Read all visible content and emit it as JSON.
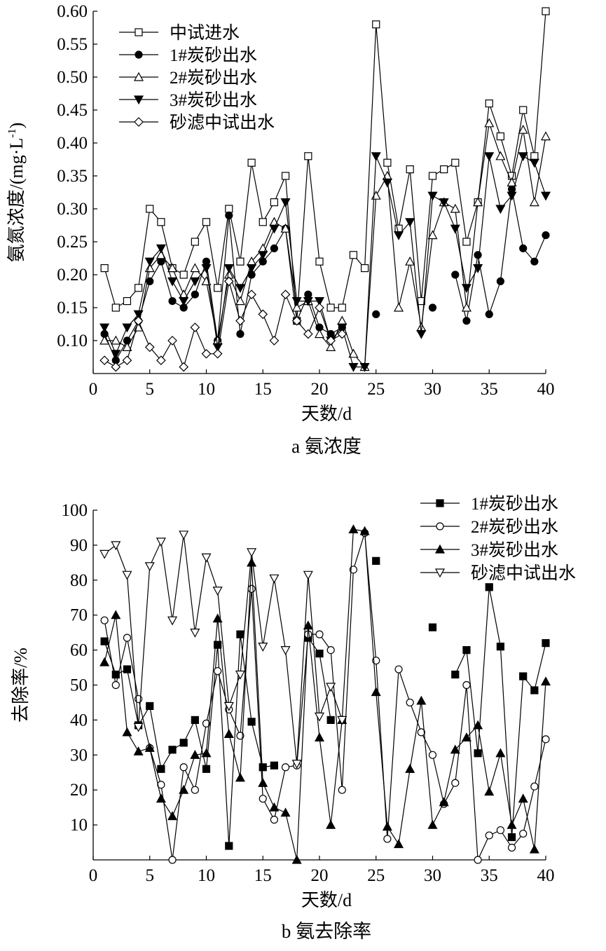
{
  "chart_data": [
    {
      "type": "line",
      "caption": "a 氨浓度",
      "xlabel": "天数/d",
      "ylabel": "氨氮浓度/(mg·L",
      "ylabel_sup": "-1",
      "ylabel_close": ")",
      "xlim": [
        0,
        40
      ],
      "ylim": [
        0.05,
        0.6
      ],
      "xticks": [
        "0",
        "5",
        "10",
        "15",
        "20",
        "25",
        "30",
        "35",
        "40"
      ],
      "yticks": [
        "0.10",
        "0.15",
        "0.20",
        "0.25",
        "0.30",
        "0.35",
        "0.40",
        "0.45",
        "0.50",
        "0.55",
        "0.60"
      ],
      "legend_position": "top-left",
      "x": [
        1,
        2,
        3,
        4,
        5,
        6,
        7,
        8,
        9,
        10,
        11,
        12,
        13,
        14,
        15,
        16,
        17,
        18,
        19,
        20,
        21,
        22,
        23,
        24,
        25,
        26,
        27,
        28,
        29,
        30,
        31,
        32,
        33,
        34,
        35,
        36,
        37,
        38,
        39,
        40
      ],
      "series": [
        {
          "name": "中试进水",
          "marker": "square-open",
          "values": [
            0.21,
            0.15,
            0.16,
            0.18,
            0.3,
            0.28,
            0.21,
            0.2,
            0.25,
            0.28,
            0.18,
            0.3,
            0.22,
            0.37,
            0.28,
            0.31,
            0.35,
            0.13,
            0.38,
            0.22,
            0.15,
            0.15,
            0.23,
            0.21,
            0.58,
            0.37,
            0.27,
            0.36,
            0.16,
            0.35,
            0.36,
            0.37,
            0.25,
            0.31,
            0.46,
            0.41,
            0.35,
            0.45,
            0.38,
            0.6
          ]
        },
        {
          "name": "1#炭砂出水",
          "marker": "circle-filled",
          "values": [
            0.11,
            0.07,
            0.1,
            0.13,
            0.19,
            0.22,
            0.16,
            0.15,
            0.17,
            0.22,
            0.1,
            0.29,
            0.11,
            0.2,
            0.22,
            0.24,
            0.27,
            0.13,
            0.17,
            0.12,
            0.11,
            0.12,
            null,
            null,
            0.14,
            null,
            null,
            null,
            null,
            0.15,
            null,
            0.2,
            0.13,
            0.23,
            0.14,
            0.19,
            0.33,
            0.24,
            0.22,
            0.26
          ]
        },
        {
          "name": "2#炭砂出水",
          "marker": "triangle-up-open",
          "values": [
            0.1,
            0.1,
            0.09,
            0.12,
            0.21,
            0.23,
            0.21,
            0.17,
            0.21,
            0.19,
            0.1,
            0.2,
            0.16,
            0.22,
            0.24,
            0.28,
            0.27,
            0.15,
            0.16,
            0.11,
            0.09,
            0.13,
            0.08,
            0.06,
            0.32,
            0.35,
            0.15,
            0.22,
            0.12,
            0.26,
            0.31,
            0.3,
            0.15,
            0.31,
            0.43,
            0.38,
            0.34,
            0.42,
            0.31,
            0.41
          ]
        },
        {
          "name": "3#炭砂出水",
          "marker": "triangle-down-filled",
          "values": [
            0.12,
            0.08,
            0.12,
            0.14,
            0.22,
            0.24,
            0.19,
            0.16,
            0.19,
            0.21,
            0.09,
            0.21,
            0.18,
            0.21,
            0.23,
            0.27,
            0.31,
            0.16,
            0.16,
            0.16,
            0.1,
            0.12,
            0.06,
            0.06,
            0.38,
            0.34,
            0.26,
            0.28,
            0.11,
            0.32,
            0.31,
            0.27,
            0.18,
            0.21,
            0.38,
            0.3,
            0.32,
            0.38,
            0.37,
            0.32
          ]
        },
        {
          "name": "砂滤中试出水",
          "marker": "diamond-open",
          "values": [
            0.07,
            0.06,
            0.07,
            0.13,
            0.09,
            0.07,
            0.1,
            0.06,
            0.12,
            0.08,
            0.08,
            0.19,
            0.13,
            0.17,
            0.14,
            0.1,
            0.17,
            0.13,
            0.11,
            0.15,
            0.1,
            0.11,
            null,
            null,
            null,
            null,
            null,
            null,
            null,
            null,
            null,
            null,
            null,
            null,
            null,
            null,
            null,
            null,
            null,
            null
          ]
        }
      ]
    },
    {
      "type": "line",
      "caption": "b 氨去除率",
      "xlabel": "天数/d",
      "ylabel": "去除率/%",
      "xlim": [
        0,
        40
      ],
      "ylim": [
        0,
        100
      ],
      "xticks": [
        "0",
        "5",
        "10",
        "15",
        "20",
        "25",
        "30",
        "35",
        "40"
      ],
      "yticks": [
        "10",
        "20",
        "30",
        "40",
        "50",
        "60",
        "70",
        "80",
        "90",
        "100"
      ],
      "legend_position": "top-right",
      "x": [
        1,
        2,
        3,
        4,
        5,
        6,
        7,
        8,
        9,
        10,
        11,
        12,
        13,
        14,
        15,
        16,
        17,
        18,
        19,
        20,
        21,
        22,
        23,
        24,
        25,
        26,
        27,
        28,
        29,
        30,
        31,
        32,
        33,
        34,
        35,
        36,
        37,
        38,
        39,
        40
      ],
      "series": [
        {
          "name": "1#炭砂出水",
          "marker": "square-filled",
          "values": [
            62.5,
            53.0,
            54.5,
            38.5,
            44.0,
            26.0,
            31.5,
            33.5,
            40.0,
            26.0,
            61.5,
            4.0,
            64.5,
            39.5,
            26.5,
            27.0,
            null,
            null,
            63.5,
            59.0,
            40.0,
            null,
            null,
            null,
            85.5,
            null,
            null,
            null,
            null,
            66.5,
            null,
            53.0,
            60.0,
            30.5,
            78.0,
            61.0,
            6.5,
            52.5,
            48.5,
            62.0
          ]
        },
        {
          "name": "2#炭砂出水",
          "marker": "circle-open",
          "values": [
            68.5,
            50.0,
            63.5,
            46.0,
            32.0,
            21.5,
            0.0,
            26.5,
            20.0,
            39.0,
            54.0,
            43.0,
            35.5,
            77.5,
            17.5,
            11.5,
            26.5,
            27.0,
            64.5,
            64.5,
            60.0,
            20.0,
            83.0,
            93.5,
            57.0,
            6.0,
            54.5,
            45.0,
            36.5,
            30.0,
            16.0,
            22.0,
            50.0,
            0.0,
            7.0,
            8.5,
            3.5,
            7.5,
            21.0,
            34.5
          ]
        },
        {
          "name": "3#炭砂出水",
          "marker": "triangle-up-filled",
          "values": [
            56.5,
            70.0,
            36.5,
            31.0,
            32.0,
            17.5,
            12.5,
            20.0,
            30.0,
            30.5,
            69.0,
            36.0,
            23.5,
            85.0,
            22.0,
            15.0,
            13.5,
            0.0,
            67.0,
            35.0,
            10.0,
            40.0,
            94.5,
            94.0,
            48.0,
            9.5,
            4.5,
            26.0,
            45.5,
            10.0,
            16.5,
            31.5,
            35.0,
            38.5,
            19.5,
            30.5,
            10.0,
            17.5,
            3.0,
            51.0
          ]
        },
        {
          "name": "砂滤中试出水",
          "marker": "triangle-down-open",
          "values": [
            87.5,
            90.0,
            81.5,
            38.0,
            84.0,
            91.0,
            68.5,
            93.0,
            65.0,
            86.5,
            77.0,
            44.0,
            53.0,
            88.0,
            61.0,
            80.5,
            60.0,
            27.5,
            81.5,
            41.0,
            49.5,
            40.0,
            null,
            null,
            null,
            null,
            null,
            null,
            null,
            null,
            null,
            null,
            null,
            null,
            null,
            null,
            null,
            null,
            null,
            null
          ]
        }
      ]
    }
  ]
}
